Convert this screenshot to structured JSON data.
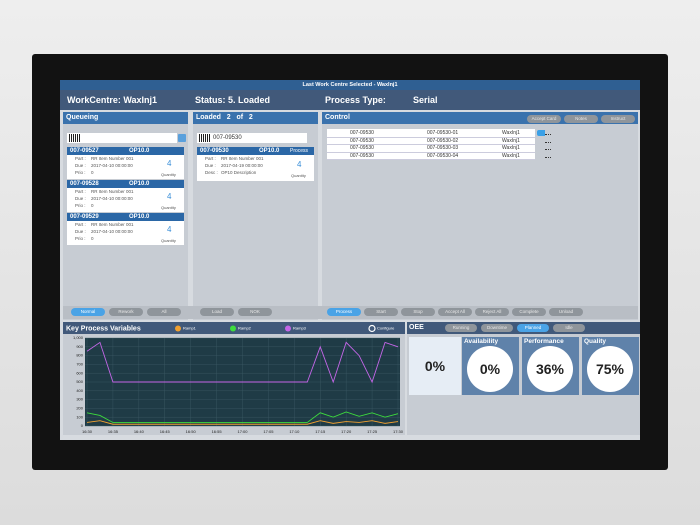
{
  "title_bar": "Last Work Centre Selected - WaxInj1",
  "header": {
    "workcentre": "WorkCentre: WaxInj1",
    "status": "Status: 5. Loaded",
    "process_type_label": "Process Type:",
    "process_type": "Serial"
  },
  "queueing": {
    "title": "Queueing",
    "cards": [
      {
        "id": "007-09527",
        "op": "OP10.0",
        "part_label": "Part :",
        "part": "RR Item Number 001",
        "due_label": "Due :",
        "due": "2017-04-10 00:00:00",
        "prio_label": "Prio :",
        "prio": "0",
        "quantity": "4",
        "quantity_label": "Quantity"
      },
      {
        "id": "007-09528",
        "op": "OP10.0",
        "part_label": "Part :",
        "part": "RR Item Number 001",
        "due_label": "Due :",
        "due": "2017-04-10 00:00:00",
        "prio_label": "Prio :",
        "prio": "0",
        "quantity": "4",
        "quantity_label": "Quantity"
      },
      {
        "id": "007-09529",
        "op": "OP10.0",
        "part_label": "Part :",
        "part": "RR Item Number 001",
        "due_label": "Due :",
        "due": "2017-04-10 00:00:00",
        "prio_label": "Prio :",
        "prio": "0",
        "quantity": "4",
        "quantity_label": "Quantity"
      }
    ],
    "buttons": [
      "Normal",
      "Rework",
      "All"
    ]
  },
  "loaded": {
    "title": "Loaded   2   of   2",
    "scan": "007-09530",
    "cards": [
      {
        "id": "007-09530",
        "op": "OP10.0",
        "state": "Process",
        "part_label": "Part :",
        "part": "RR Item Number 001",
        "due_label": "Due :",
        "due": "2017-04-19 00:00:00",
        "desc_label": "Desc :",
        "desc": "OP10 Description",
        "quantity": "4",
        "quantity_label": "Quantity"
      }
    ],
    "buttons": [
      "Load",
      "NOK"
    ]
  },
  "control": {
    "title": "Control",
    "top_buttons": [
      "Accept Card",
      "Notes",
      "Instruct"
    ],
    "rows": [
      [
        "007-09530",
        "007-09530-01",
        "WaxInj1"
      ],
      [
        "007-09530",
        "007-09530-02",
        "WaxInj1"
      ],
      [
        "007-09530",
        "007-09530-03",
        "WaxInj1"
      ],
      [
        "007-09530",
        "007-09530-04",
        "WaxInj1"
      ]
    ],
    "buttons": [
      "Process",
      "Start",
      "Stop",
      "Accept All",
      "Reject All",
      "Complete",
      "Unload"
    ]
  },
  "process_chart": {
    "type": "line",
    "title": "Key Process Variables",
    "configure": "Configure",
    "categories": [
      "16:30",
      null,
      "16:35",
      null,
      "16:40",
      null,
      "16:45",
      null,
      "16:50",
      null,
      "16:55",
      null,
      "17:00",
      null,
      "17:05",
      null,
      "17:10",
      null,
      "17:15",
      null,
      "17:20",
      null,
      "17:25",
      null,
      "17:30"
    ],
    "series": [
      {
        "name": "Ramp1",
        "color": "#f0a030",
        "values": [
          40,
          60,
          20,
          20,
          20,
          20,
          20,
          20,
          20,
          20,
          20,
          20,
          20,
          20,
          20,
          20,
          20,
          20,
          60,
          30,
          50,
          40,
          60,
          30,
          50
        ]
      },
      {
        "name": "Ramp2",
        "color": "#3ddc3d",
        "values": [
          150,
          120,
          40,
          40,
          40,
          40,
          40,
          40,
          40,
          40,
          40,
          40,
          40,
          40,
          40,
          40,
          40,
          40,
          150,
          100,
          160,
          110,
          150,
          100,
          140
        ]
      },
      {
        "name": "Ramp3",
        "color": "#c466e8",
        "values": [
          850,
          950,
          500,
          500,
          500,
          500,
          500,
          500,
          500,
          500,
          500,
          500,
          500,
          500,
          500,
          500,
          500,
          500,
          900,
          500,
          950,
          800,
          500,
          950,
          900
        ]
      }
    ],
    "ylim": [
      0,
      1000
    ],
    "yticks": [
      0,
      100,
      200,
      300,
      400,
      500,
      600,
      700,
      800,
      900,
      {
        "value": 1000,
        "label": "1,000"
      }
    ],
    "grid": true
  },
  "oee": {
    "title": "OEE",
    "buttons": [
      "Running",
      "Downtime",
      "Planned",
      "Idle"
    ],
    "overall": "0%",
    "tiles": [
      {
        "label": "Availability",
        "value": "0%"
      },
      {
        "label": "Performance",
        "value": "36%"
      },
      {
        "label": "Quality",
        "value": "75%"
      }
    ]
  }
}
